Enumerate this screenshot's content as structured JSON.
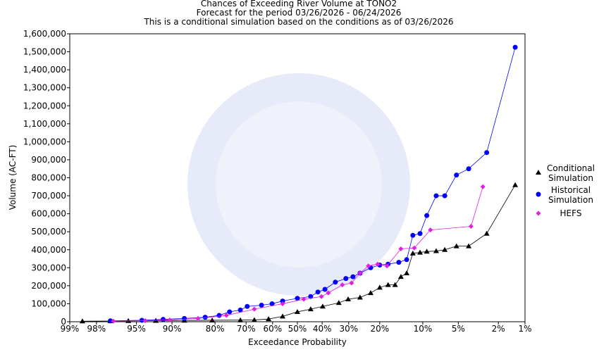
{
  "chart_data": {
    "type": "probability-scatter",
    "title": "Chances of Exceeding River Volume at TONO2",
    "subtitle": "Forecast for the period 03/26/2026 - 06/24/2026",
    "caption": "This is a conditional simulation based on the conditions as of 03/26/2026",
    "xlabel": "Exceedance Probability",
    "ylabel": "Volume (AC-FT)",
    "x_scale": "normal-probability",
    "xlim": [
      99,
      1
    ],
    "xticks": [
      {
        "value": 99,
        "label": "99%"
      },
      {
        "value": 98,
        "label": "98%"
      },
      {
        "value": 95,
        "label": "95%"
      },
      {
        "value": 90,
        "label": "90%"
      },
      {
        "value": 80,
        "label": "80%"
      },
      {
        "value": 70,
        "label": "70%"
      },
      {
        "value": 60,
        "label": "60%"
      },
      {
        "value": 50,
        "label": "50%"
      },
      {
        "value": 40,
        "label": "40%"
      },
      {
        "value": 30,
        "label": "30%"
      },
      {
        "value": 20,
        "label": "20%"
      },
      {
        "value": 10,
        "label": "10%"
      },
      {
        "value": 5,
        "label": "5%"
      },
      {
        "value": 2,
        "label": "2%"
      },
      {
        "value": 1,
        "label": "1%"
      }
    ],
    "ylim": [
      0,
      1600000
    ],
    "yticks": [
      0,
      {
        "value": 100000,
        "label": "100,000"
      },
      {
        "value": 200000,
        "label": "200,000"
      },
      {
        "value": 300000,
        "label": "300,000"
      },
      {
        "value": 400000,
        "label": "400,000"
      },
      {
        "value": 500000,
        "label": "500,000"
      },
      {
        "value": 600000,
        "label": "600,000"
      },
      {
        "value": 700000,
        "label": "700,000"
      },
      {
        "value": 800000,
        "label": "800,000"
      },
      {
        "value": 900000,
        "label": "900,000"
      },
      {
        "value": 1000000,
        "label": "1,000,000"
      },
      {
        "value": 1100000,
        "label": "1,100,000"
      },
      {
        "value": 1200000,
        "label": "1,200,000"
      },
      {
        "value": 1300000,
        "label": "1,300,000"
      },
      {
        "value": 1400000,
        "label": "1,400,000"
      },
      {
        "value": 1500000,
        "label": "1,500,000"
      },
      {
        "value": 1600000,
        "label": "1,600,000"
      }
    ],
    "series": [
      {
        "name": "Conditional Simulation",
        "color": "#000000",
        "marker": "triangle",
        "x": [
          98.6,
          97.2,
          95.8,
          92.6,
          87.6,
          80.8,
          72.0,
          67.0,
          61.6,
          56.0,
          50.0,
          44.6,
          39.8,
          33.6,
          30.2,
          26.1,
          22.7,
          20.0,
          17.7,
          15.9,
          14.5,
          13.2,
          11.9,
          10.5,
          9.3,
          7.8,
          6.6,
          5.2,
          4.0,
          2.65,
          1.3
        ],
        "values": [
          3000,
          4000,
          5000,
          6000,
          7000,
          8000,
          9000,
          10000,
          15000,
          30000,
          55000,
          70000,
          85000,
          105000,
          125000,
          135000,
          160000,
          190000,
          205000,
          205000,
          250000,
          270000,
          380000,
          385000,
          390000,
          393000,
          400000,
          420000,
          420000,
          490000,
          760000
        ]
      },
      {
        "name": "Historical Simulation",
        "color": "#0000ff",
        "marker": "circle",
        "x": [
          97.2,
          94.4,
          91.5,
          87.6,
          82.7,
          78.8,
          75.6,
          72.0,
          69.6,
          64.3,
          60.2,
          56.0,
          50.0,
          44.6,
          41.7,
          38.9,
          34.9,
          31.0,
          28.5,
          26.1,
          22.7,
          20.0,
          17.7,
          15.0,
          13.2,
          11.9,
          10.5,
          9.3,
          7.8,
          6.6,
          5.2,
          4.0,
          2.65,
          1.3
        ],
        "values": [
          5000,
          8000,
          13000,
          18000,
          25000,
          35000,
          55000,
          65000,
          85000,
          92000,
          100000,
          115000,
          130000,
          140000,
          165000,
          180000,
          220000,
          240000,
          250000,
          270000,
          300000,
          315000,
          320000,
          330000,
          345000,
          480000,
          490000,
          590000,
          700000,
          700000,
          815000,
          850000,
          940000,
          1525000
        ]
      },
      {
        "name": "HEFS",
        "color": "#e020e0",
        "marker": "diamond",
        "x": [
          97.0,
          94.0,
          90.4,
          84.5,
          76.6,
          67.0,
          56.0,
          47.4,
          40.3,
          37.6,
          32.3,
          29.0,
          26.1,
          23.4,
          20.6,
          18.0,
          14.5,
          11.6,
          8.7,
          3.8,
          2.9
        ],
        "values": [
          3000,
          6000,
          10000,
          18000,
          35000,
          70000,
          100000,
          125000,
          140000,
          160000,
          205000,
          215000,
          270000,
          310000,
          320000,
          310000,
          405000,
          410000,
          510000,
          530000,
          750000
        ]
      }
    ]
  }
}
